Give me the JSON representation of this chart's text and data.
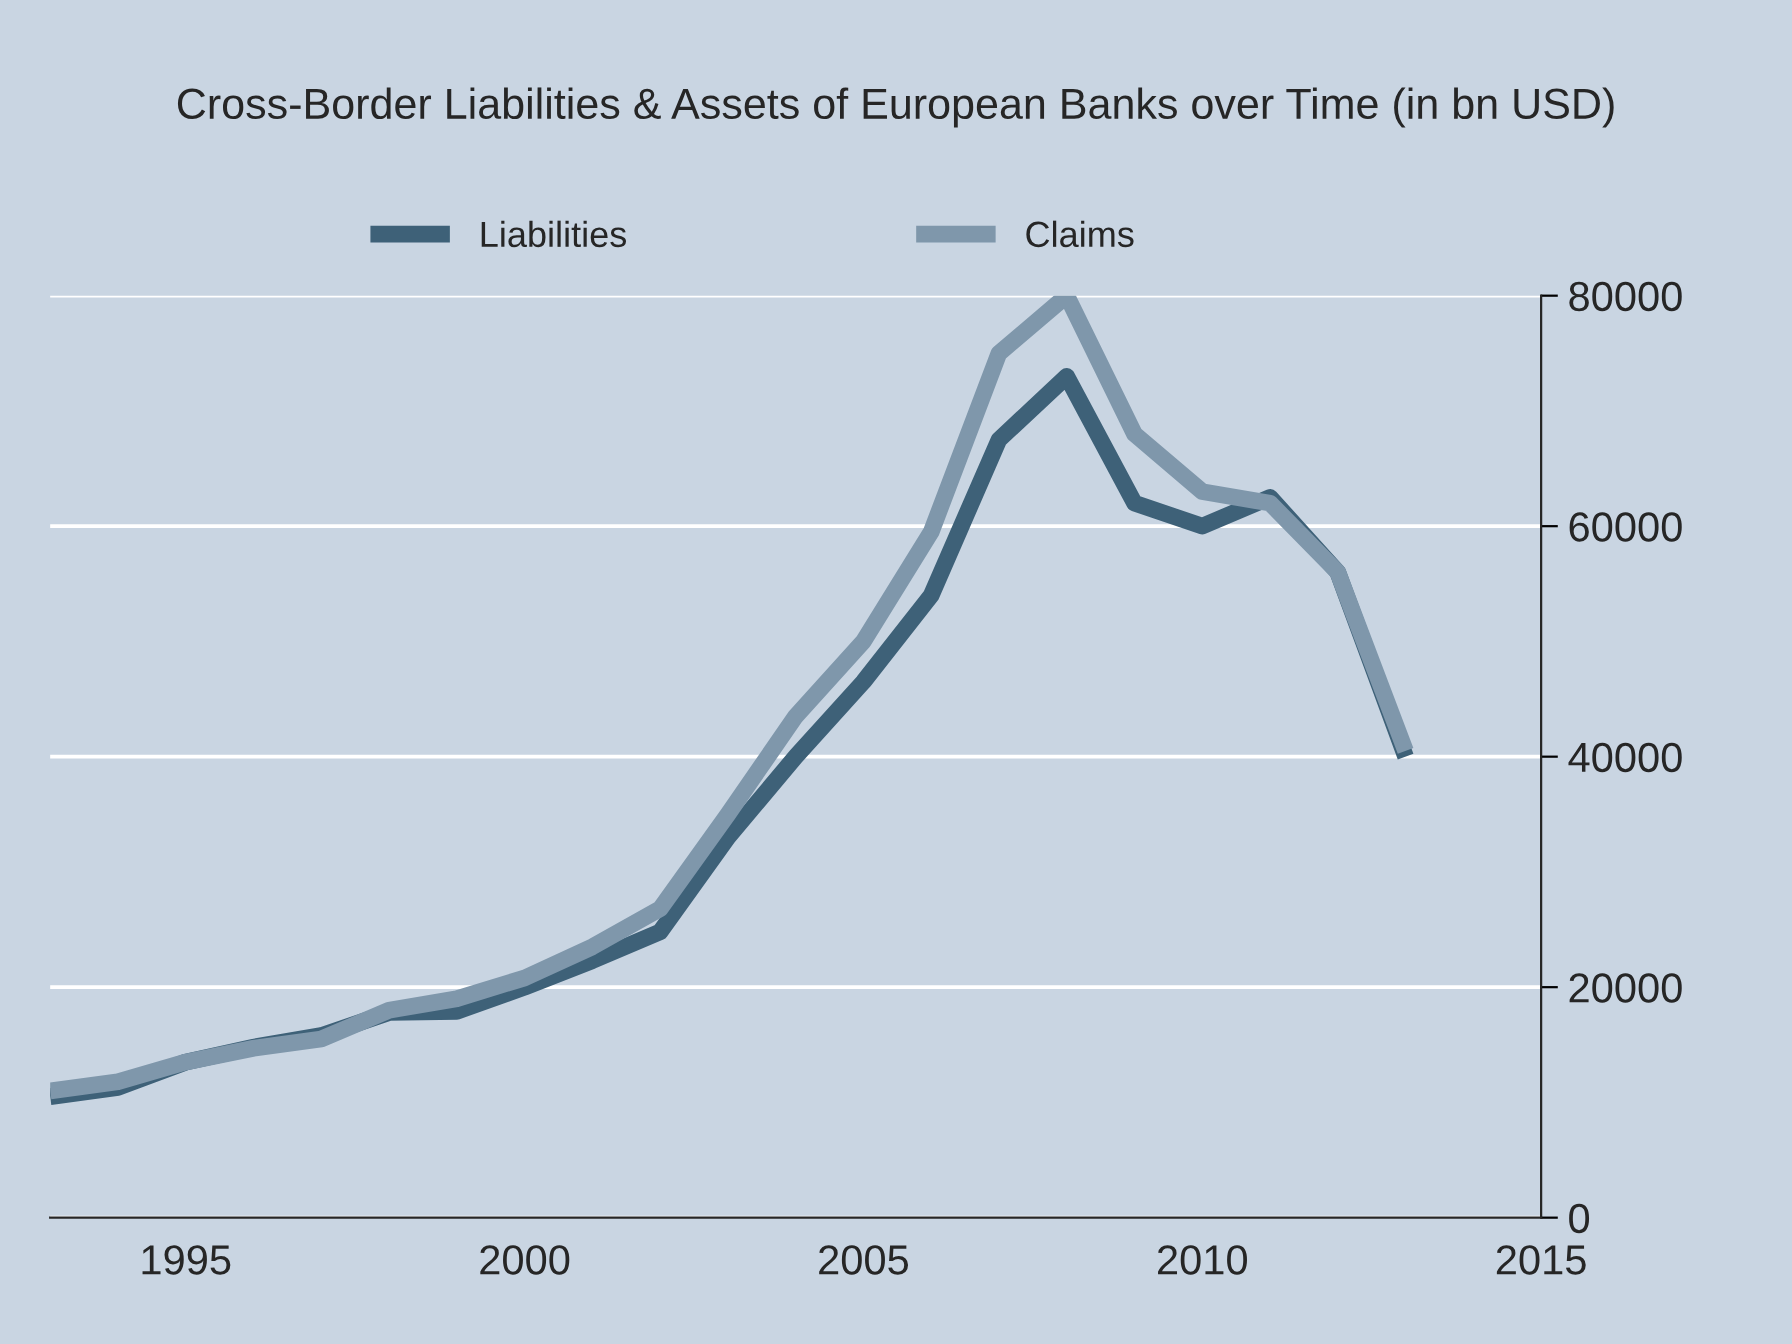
{
  "chart_data": {
    "type": "line",
    "title": "Cross-Border Liabilities & Assets of European Banks over Time (in bn USD)",
    "x": [
      1993,
      1994,
      1995,
      1996,
      1997,
      1998,
      1999,
      2000,
      2001,
      2002,
      2003,
      2004,
      2005,
      2006,
      2007,
      2008,
      2009,
      2010,
      2011,
      2012,
      2013
    ],
    "series": [
      {
        "name": "Liabilities",
        "color": "#3e6178",
        "values": [
          10500,
          11300,
          13500,
          14800,
          15800,
          17800,
          17900,
          20000,
          22300,
          24800,
          33000,
          40000,
          46500,
          54000,
          67500,
          73000,
          62000,
          60000,
          62500,
          56000,
          40000
        ]
      },
      {
        "name": "Claims",
        "color": "#7f97ab",
        "values": [
          11000,
          11800,
          13500,
          14700,
          15500,
          18000,
          19000,
          20800,
          23500,
          26800,
          35000,
          43500,
          50000,
          59500,
          75000,
          80000,
          68000,
          63000,
          62000,
          56000,
          40500
        ]
      }
    ],
    "xlim": [
      1993,
      2015
    ],
    "xticks": [
      1995,
      2000,
      2005,
      2010,
      2015
    ],
    "ylim": [
      0,
      80000
    ],
    "yticks": [
      0,
      20000,
      40000,
      60000,
      80000
    ],
    "grid": "y",
    "legend": "top",
    "line_style": "solid",
    "marker": "none"
  }
}
